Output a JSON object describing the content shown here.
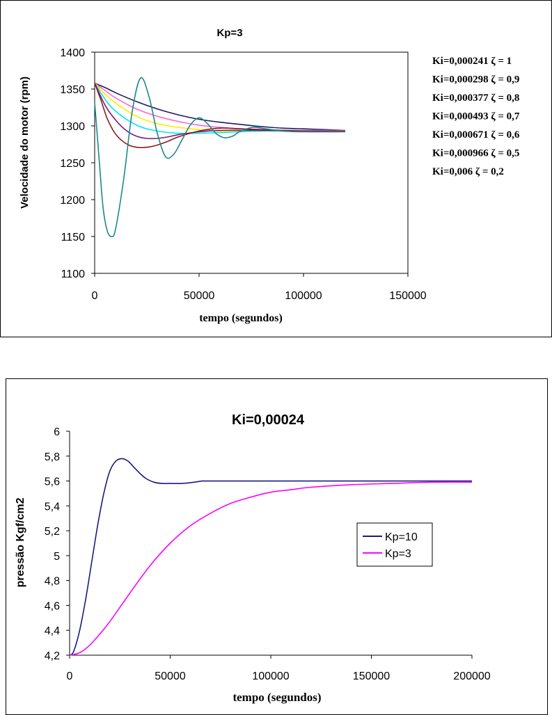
{
  "chart_data": [
    {
      "type": "line",
      "title": "Kp=3",
      "xlabel": "tempo (segundos)",
      "ylabel": "Velocidade do motor (rpm)",
      "xlim": [
        0,
        150000
      ],
      "ylim": [
        1100,
        1400
      ],
      "xticks": [
        0,
        50000,
        100000,
        150000
      ],
      "xtick_labels": [
        "0",
        "50000",
        "100000",
        "150000"
      ],
      "yticks": [
        1100,
        1150,
        1200,
        1250,
        1300,
        1350,
        1400
      ],
      "ytick_labels": [
        "1100",
        "1150",
        "1200",
        "1250",
        "1300",
        "1350",
        "1400"
      ],
      "grid": false,
      "legend_placement": "right, outside plot",
      "series": [
        {
          "name": "Ki=0,000241 ζ = 1",
          "color": "#1a1a6e",
          "x": [
            0,
            5000,
            10000,
            20000,
            30000,
            40000,
            50000,
            60000,
            70000,
            80000,
            90000,
            100000,
            110000,
            120000
          ],
          "y": [
            1358,
            1352,
            1345,
            1333,
            1323,
            1315,
            1309,
            1305,
            1302,
            1299,
            1297,
            1296,
            1295,
            1294
          ]
        },
        {
          "name": "Ki=0,000298 ζ = 0,9",
          "color": "#ff66cc",
          "x": [
            0,
            5000,
            10000,
            20000,
            30000,
            40000,
            50000,
            60000,
            70000,
            80000,
            90000,
            100000,
            120000
          ],
          "y": [
            1358,
            1348,
            1338,
            1323,
            1313,
            1306,
            1301,
            1298,
            1296,
            1295,
            1294,
            1294,
            1294
          ]
        },
        {
          "name": "Ki=0,000377 ζ = 0,8",
          "color": "#ffea00",
          "x": [
            0,
            5000,
            10000,
            20000,
            30000,
            40000,
            50000,
            60000,
            70000,
            80000,
            100000,
            120000
          ],
          "y": [
            1358,
            1343,
            1331,
            1313,
            1303,
            1298,
            1295,
            1293,
            1293,
            1293,
            1293,
            1293
          ]
        },
        {
          "name": "Ki=0,000493 ζ = 0,7",
          "color": "#00e5ee",
          "x": [
            0,
            5000,
            10000,
            20000,
            30000,
            40000,
            50000,
            60000,
            70000,
            80000,
            100000,
            120000
          ],
          "y": [
            1358,
            1336,
            1320,
            1301,
            1293,
            1290,
            1290,
            1291,
            1292,
            1293,
            1293,
            1293
          ]
        },
        {
          "name": "Ki=0,000671 ζ = 0,6",
          "color": "#7a1a7a",
          "x": [
            0,
            5000,
            10000,
            15000,
            20000,
            25000,
            30000,
            35000,
            40000,
            50000,
            60000,
            70000,
            80000,
            100000,
            120000
          ],
          "y": [
            1358,
            1328,
            1308,
            1294,
            1286,
            1283,
            1283,
            1285,
            1288,
            1292,
            1294,
            1294,
            1294,
            1293,
            1293
          ]
        },
        {
          "name": "Ki=0,000966 ζ = 0,5",
          "color": "#8b1a1a",
          "x": [
            0,
            3000,
            6000,
            10000,
            15000,
            20000,
            25000,
            30000,
            35000,
            40000,
            50000,
            60000,
            70000,
            80000,
            100000,
            120000
          ],
          "y": [
            1358,
            1335,
            1310,
            1289,
            1276,
            1271,
            1271,
            1274,
            1279,
            1285,
            1293,
            1297,
            1296,
            1295,
            1293,
            1293
          ]
        },
        {
          "name": "Ki=0,006 ζ = 0,2",
          "color": "#1a8a8a",
          "x": [
            0,
            2000,
            4000,
            6000,
            8000,
            10000,
            14000,
            18000,
            22000,
            26000,
            30000,
            34000,
            38000,
            42000,
            46000,
            50000,
            54000,
            58000,
            62000,
            66000,
            70000,
            76000,
            82000,
            90000,
            100000,
            120000
          ],
          "y": [
            1332,
            1260,
            1190,
            1158,
            1150,
            1160,
            1230,
            1320,
            1365,
            1340,
            1290,
            1258,
            1262,
            1282,
            1302,
            1311,
            1303,
            1290,
            1284,
            1286,
            1293,
            1298,
            1296,
            1293,
            1292,
            1292
          ]
        }
      ]
    },
    {
      "type": "line",
      "title": "Ki=0,00024",
      "xlabel": "tempo (segundos)",
      "ylabel": "pressão Kgf/cm2",
      "xlim": [
        0,
        200000
      ],
      "ylim": [
        4.2,
        6
      ],
      "xticks": [
        0,
        50000,
        100000,
        150000,
        200000
      ],
      "xtick_labels": [
        "0",
        "50000",
        "100000",
        "150000",
        "200000"
      ],
      "yticks": [
        4.2,
        4.4,
        4.6,
        4.8,
        5,
        5.2,
        5.4,
        5.6,
        5.8,
        6
      ],
      "ytick_labels": [
        "4,2",
        "4,4",
        "4,6",
        "4,8",
        "5",
        "5,2",
        "5,4",
        "5,6",
        "5,8",
        "6"
      ],
      "grid": false,
      "legend_placement": "right, inside plot",
      "series": [
        {
          "name": "Kp=10",
          "color": "#1a1a80",
          "x": [
            0,
            2000,
            5000,
            8000,
            11000,
            14000,
            17000,
            20000,
            23000,
            26000,
            29000,
            32000,
            35000,
            38000,
            42000,
            46000,
            50000,
            56000,
            62000,
            66000,
            70000,
            100000,
            150000,
            200000
          ],
          "y": [
            4.2,
            4.23,
            4.4,
            4.65,
            4.95,
            5.25,
            5.5,
            5.68,
            5.76,
            5.78,
            5.76,
            5.71,
            5.66,
            5.62,
            5.59,
            5.58,
            5.58,
            5.58,
            5.59,
            5.6,
            5.6,
            5.6,
            5.6,
            5.6
          ]
        },
        {
          "name": "Kp=3",
          "color": "#ff00ff",
          "x": [
            0,
            5000,
            10000,
            15000,
            20000,
            30000,
            40000,
            50000,
            60000,
            70000,
            80000,
            90000,
            100000,
            110000,
            120000,
            140000,
            160000,
            180000,
            200000
          ],
          "y": [
            4.2,
            4.22,
            4.28,
            4.37,
            4.47,
            4.7,
            4.92,
            5.1,
            5.24,
            5.34,
            5.42,
            5.47,
            5.51,
            5.53,
            5.55,
            5.57,
            5.58,
            5.59,
            5.59
          ]
        }
      ]
    }
  ]
}
